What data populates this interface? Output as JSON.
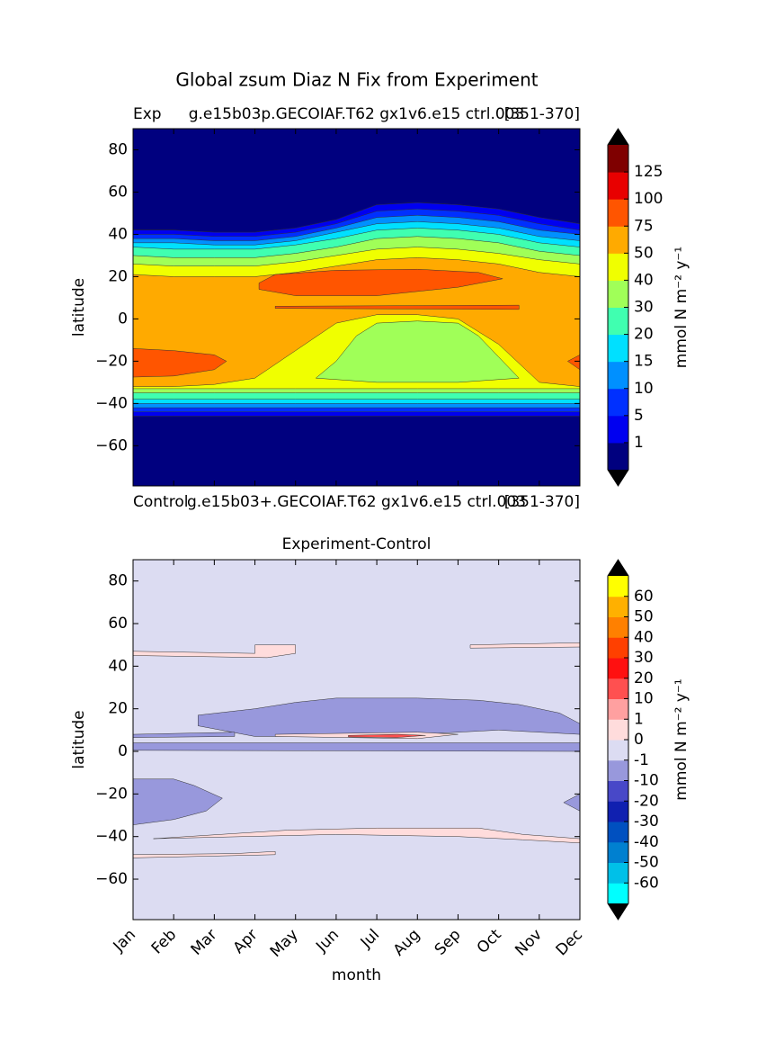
{
  "chart_data": [
    {
      "type": "contour",
      "title": "Global zsum Diaz N Fix from Experiment",
      "subtitle_left": "Exp",
      "subtitle_center": "g.e15b03p.GECOIAF.T62 gx1v6.e15 ctrl.003",
      "subtitle_right": "[351-370]",
      "ylabel": "latitude",
      "ylim": [
        -79,
        90
      ],
      "yticks": [
        {
          "value": -60,
          "label": "−60"
        },
        {
          "value": -40,
          "label": "−40"
        },
        {
          "value": -20,
          "label": "−20"
        },
        0,
        20,
        40,
        60,
        80
      ],
      "colorbar": {
        "label": "mmol N m⁻² y⁻¹",
        "levels": [
          1,
          5,
          10,
          15,
          20,
          30,
          40,
          50,
          75,
          100,
          125
        ],
        "colors": [
          "#00007f",
          "#0000f0",
          "#0030ff",
          "#0090ff",
          "#00e0ff",
          "#40ffb0",
          "#a0ff58",
          "#f0ff00",
          "#ffaa00",
          "#ff5500",
          "#e80000",
          "#7f0000"
        ],
        "extend_color": "#000000"
      }
    },
    {
      "type": "hidden",
      "subtitle_left": "Control",
      "subtitle_center": "g.e15b03+.GECOIAF.T62 gx1v6.e15 ctrl.003",
      "subtitle_right": "[351-370]"
    },
    {
      "type": "contour",
      "title": "Experiment-Control",
      "categories": [
        "Jan",
        "Feb",
        "Mar",
        "Apr",
        "May",
        "Jun",
        "Jul",
        "Aug",
        "Sep",
        "Oct",
        "Nov",
        "Dec"
      ],
      "xlabel": "month",
      "ylabel": "latitude",
      "ylim": [
        -79,
        90
      ],
      "yticks": [
        {
          "value": -60,
          "label": "−60"
        },
        {
          "value": -40,
          "label": "−40"
        },
        {
          "value": -20,
          "label": "−20"
        },
        0,
        20,
        40,
        60,
        80
      ],
      "colorbar": {
        "label": "mmol N m⁻² y⁻¹",
        "levels": [
          -60,
          -50,
          -40,
          -30,
          -20,
          -10,
          -1,
          0,
          1,
          10,
          20,
          30,
          40,
          50,
          60
        ],
        "colors": [
          "#00ffff",
          "#00c0e8",
          "#0080d0",
          "#0050c0",
          "#1020b0",
          "#4848c8",
          "#9898dc",
          "#dcdcf2",
          "#ffdcdc",
          "#ffa0a0",
          "#ff5050",
          "#ff1010",
          "#ff4000",
          "#ff8000",
          "#ffb000",
          "#ffff00"
        ],
        "extend_color": "#000000"
      }
    }
  ]
}
